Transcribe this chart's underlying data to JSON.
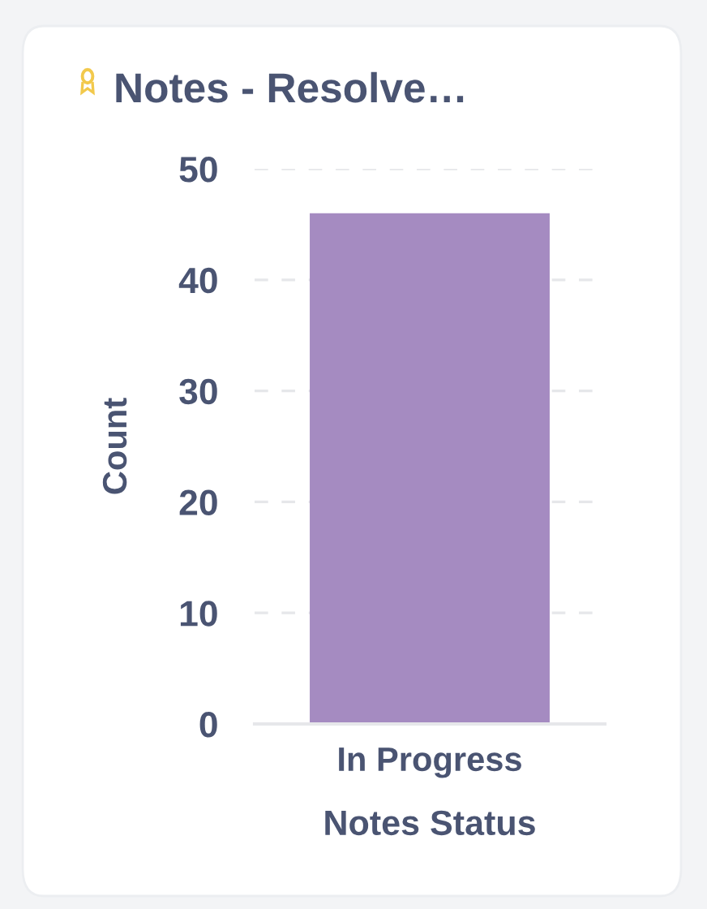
{
  "chart_data": {
    "type": "bar",
    "title": "Notes - Resolve…",
    "xlabel": "Notes Status",
    "ylabel": "Count",
    "categories": [
      "In Progress"
    ],
    "values": [
      46
    ],
    "color": "#a58bc1",
    "ylim": [
      0,
      50
    ],
    "yticks": [
      0,
      10,
      20,
      30,
      40,
      50
    ],
    "grid": "y"
  }
}
